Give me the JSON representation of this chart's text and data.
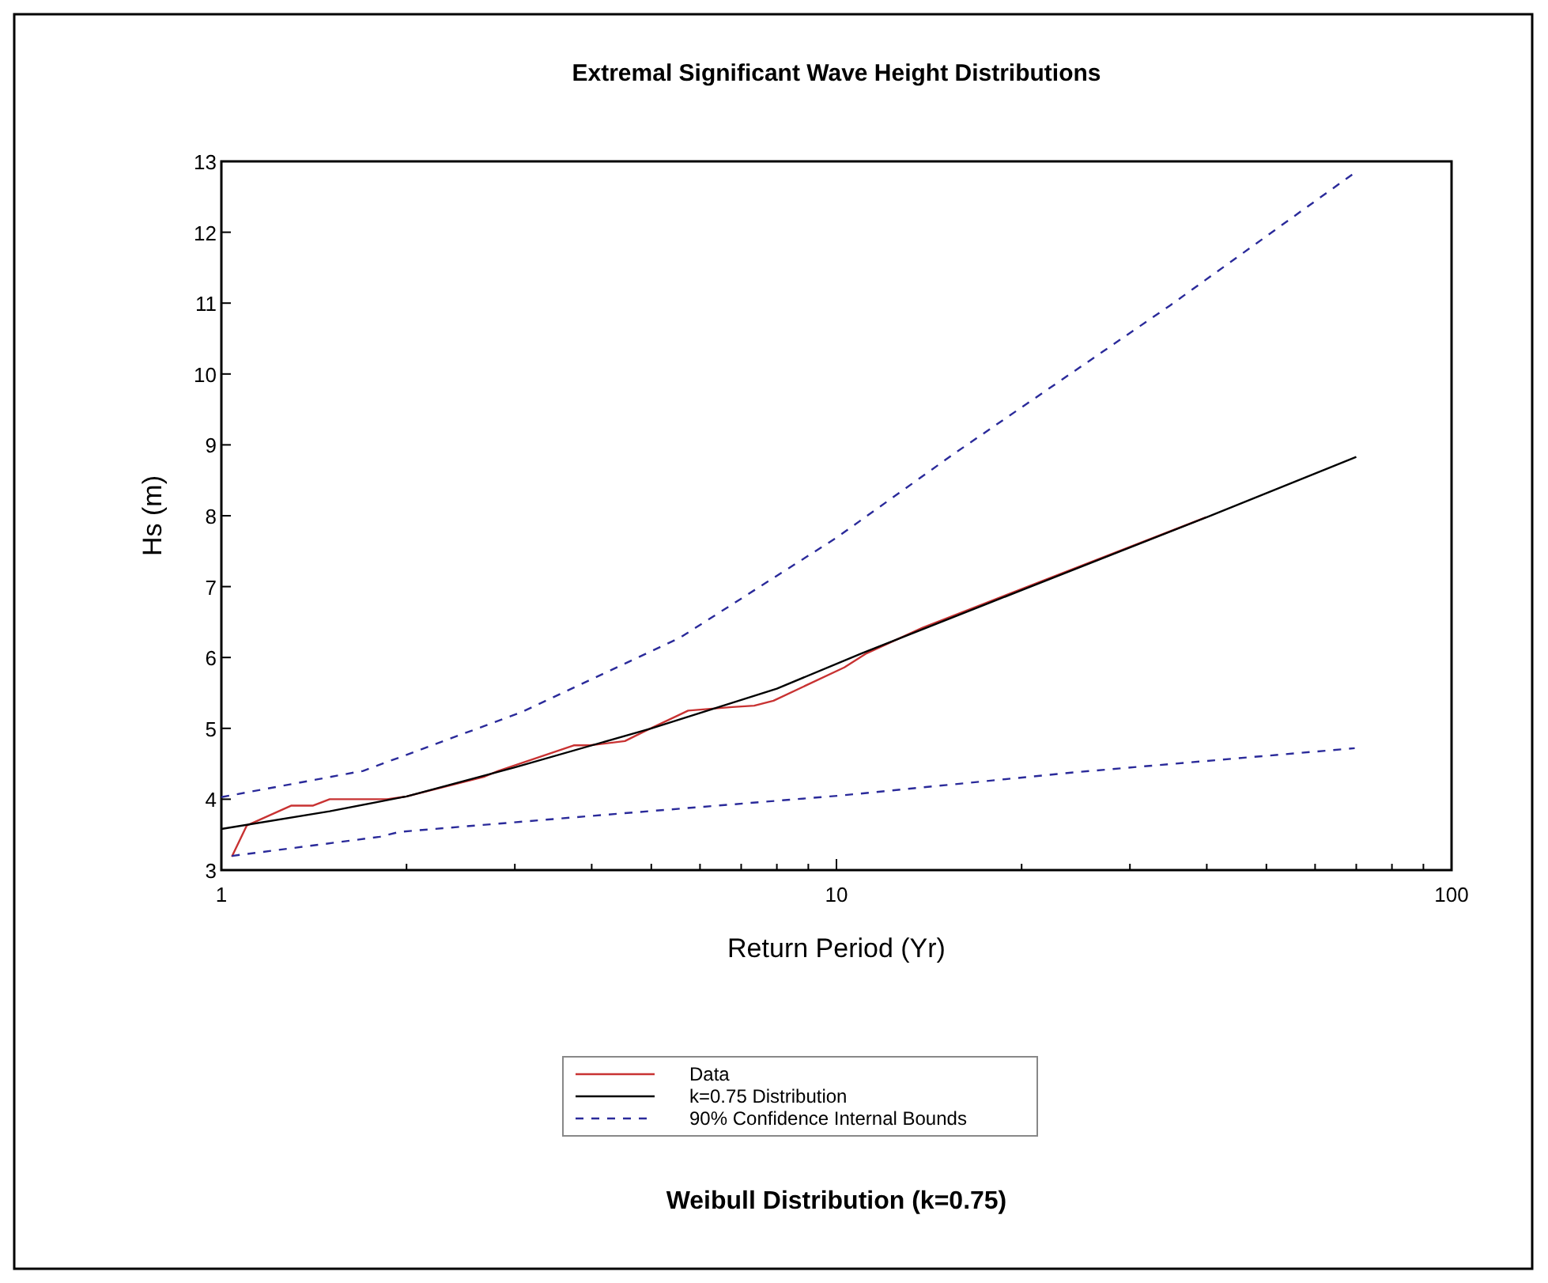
{
  "chart_data": {
    "type": "line",
    "title": "Extremal Significant Wave Height Distributions",
    "xlabel": "Return Period (Yr)",
    "ylabel": "Hs (m)",
    "log": "x",
    "xlim": [
      1,
      100
    ],
    "xticks": [
      1,
      {
        "value": 2,
        "label": null
      },
      {
        "value": 3,
        "label": null
      },
      {
        "value": 4,
        "label": null
      },
      {
        "value": 5,
        "label": null
      },
      {
        "value": 6,
        "label": null
      },
      {
        "value": 7,
        "label": null
      },
      {
        "value": 8,
        "label": null
      },
      {
        "value": 9,
        "label": null
      },
      10,
      {
        "value": 20,
        "label": null
      },
      {
        "value": 30,
        "label": null
      },
      {
        "value": 40,
        "label": null
      },
      {
        "value": 50,
        "label": null
      },
      {
        "value": 60,
        "label": null
      },
      {
        "value": 70,
        "label": null
      },
      {
        "value": 80,
        "label": null
      },
      {
        "value": 90,
        "label": null
      },
      100
    ],
    "ylim": [
      3,
      13
    ],
    "yticks": [
      3,
      4,
      5,
      6,
      7,
      8,
      9,
      10,
      11,
      12,
      13
    ],
    "grid": false,
    "legend": "bottom",
    "marker": "none",
    "annotations": [
      "Weibull Distribution (k=0.75)"
    ],
    "series": [
      {
        "name": "Data",
        "color": "#c83232",
        "line_style": "solid",
        "x": [
          1.04,
          1.1,
          1.3,
          1.41,
          1.5,
          1.86,
          2.0,
          2.68,
          2.82,
          3.74,
          3.97,
          4.53,
          4.88,
          5.74,
          6.77,
          7.35,
          7.9,
          10.3,
          11.2,
          13.8,
          39.9
        ],
        "values": [
          3.19,
          3.63,
          3.91,
          3.91,
          4.0,
          4.0,
          4.04,
          4.32,
          4.4,
          4.76,
          4.76,
          4.82,
          4.96,
          5.25,
          5.3,
          5.32,
          5.39,
          5.86,
          6.06,
          6.42,
          7.98
        ]
      },
      {
        "name": "k=0.75 Distribution",
        "color": "#000000",
        "line_style": "solid",
        "x": [
          1,
          1.5,
          2,
          3,
          5,
          8,
          11,
          20,
          40,
          70
        ],
        "values": [
          3.58,
          3.83,
          4.04,
          4.45,
          5.0,
          5.56,
          6.06,
          6.95,
          7.98,
          8.83
        ]
      },
      {
        "name": "90% Confidence Internal Bounds",
        "color": "#2a2a9a",
        "line_style": "dashed",
        "x": [
          1,
          1.7,
          3.08,
          5.57,
          10,
          15.5,
          34.9,
          69.6
        ],
        "values": [
          4.03,
          4.4,
          5.23,
          6.28,
          7.69,
          8.87,
          10.97,
          12.84
        ]
      },
      {
        "color": "#2a2a9a",
        "line_style": "dashed",
        "x": [
          1.04,
          1.81,
          1.95,
          4.2,
          10.1,
          24.4,
          69.6
        ],
        "values": [
          3.2,
          3.47,
          3.54,
          3.78,
          4.05,
          4.38,
          4.72
        ]
      }
    ]
  }
}
